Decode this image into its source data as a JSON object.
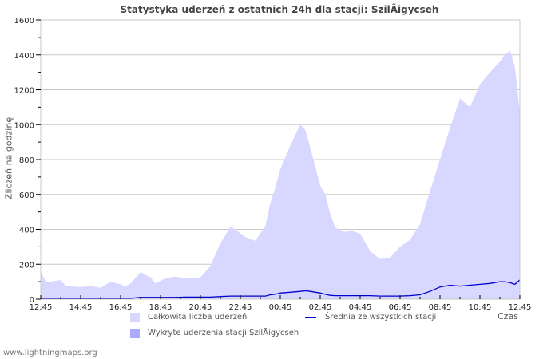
{
  "chart_data": {
    "type": "area",
    "title": "Statystyka uderzeń z ostatnich 24h dla stacji: SzilÃigycseh",
    "xlabel": "Czas",
    "ylabel": "Zliczeń na godzinę",
    "ylim": [
      0,
      1600
    ],
    "yticks": [
      0,
      200,
      400,
      600,
      800,
      1000,
      1200,
      1400,
      1600
    ],
    "xtick_labels": [
      "12:45",
      "14:45",
      "16:45",
      "18:45",
      "20:45",
      "22:45",
      "00:45",
      "02:45",
      "04:45",
      "06:45",
      "08:45",
      "10:45",
      "12:45"
    ],
    "grid": true,
    "legend_position": "bottom",
    "x_hours": [
      0,
      0.25,
      0.5,
      1,
      1.25,
      2,
      2.5,
      3,
      3.5,
      4,
      4.25,
      4.5,
      5,
      5.5,
      5.75,
      6.25,
      6.75,
      7.25,
      8,
      8.5,
      9,
      9.5,
      9.75,
      10.25,
      10.75,
      11.25,
      11.5,
      11.75,
      12,
      12.5,
      13,
      13.25,
      13.5,
      14,
      14.25,
      14.5,
      14.75,
      15.25,
      15.5,
      16,
      16.5,
      17,
      17.5,
      18,
      18.5,
      19,
      19.5,
      20,
      20.5,
      21,
      21.5,
      22,
      22.5,
      23,
      23.25,
      23.5,
      23.75,
      24
    ],
    "series": [
      {
        "name": "Całkowita liczba uderzeń",
        "color": "#d7d7ff",
        "type": "area",
        "values": [
          160,
          100,
          100,
          110,
          75,
          70,
          75,
          65,
          100,
          85,
          70,
          90,
          155,
          125,
          90,
          120,
          130,
          120,
          125,
          190,
          320,
          415,
          400,
          355,
          335,
          420,
          550,
          640,
          745,
          880,
          1000,
          970,
          870,
          650,
          600,
          490,
          410,
          385,
          395,
          375,
          275,
          230,
          240,
          300,
          340,
          430,
          620,
          800,
          980,
          1150,
          1100,
          1230,
          1300,
          1360,
          1400,
          1425,
          1330,
          1075
        ]
      },
      {
        "name": "Średnia ze wszystkich stacji",
        "color": "#0000cc",
        "type": "line",
        "values": [
          5,
          5,
          5,
          5,
          5,
          5,
          5,
          5,
          5,
          5,
          5,
          5,
          10,
          10,
          10,
          10,
          10,
          12,
          12,
          12,
          15,
          18,
          18,
          18,
          18,
          18,
          25,
          28,
          35,
          40,
          45,
          48,
          45,
          35,
          28,
          22,
          20,
          20,
          20,
          20,
          20,
          18,
          18,
          18,
          20,
          25,
          45,
          70,
          80,
          75,
          80,
          85,
          90,
          100,
          100,
          95,
          85,
          110
        ]
      },
      {
        "name": "Wykryte uderzenia stacji SzilÃigycseh",
        "color": "#aaaaff",
        "type": "area",
        "values": []
      }
    ]
  },
  "legend": {
    "items": [
      {
        "label": "Całkowita liczba uderzeń",
        "color": "#d7d7ff"
      },
      {
        "label": "Średnia ze wszystkich stacji",
        "color": "#0000cc"
      },
      {
        "label": "Wykryte uderzenia stacji SzilÃigycseh",
        "color": "#aaaaff"
      }
    ]
  },
  "footer": {
    "text": "www.lightningmaps.org"
  }
}
